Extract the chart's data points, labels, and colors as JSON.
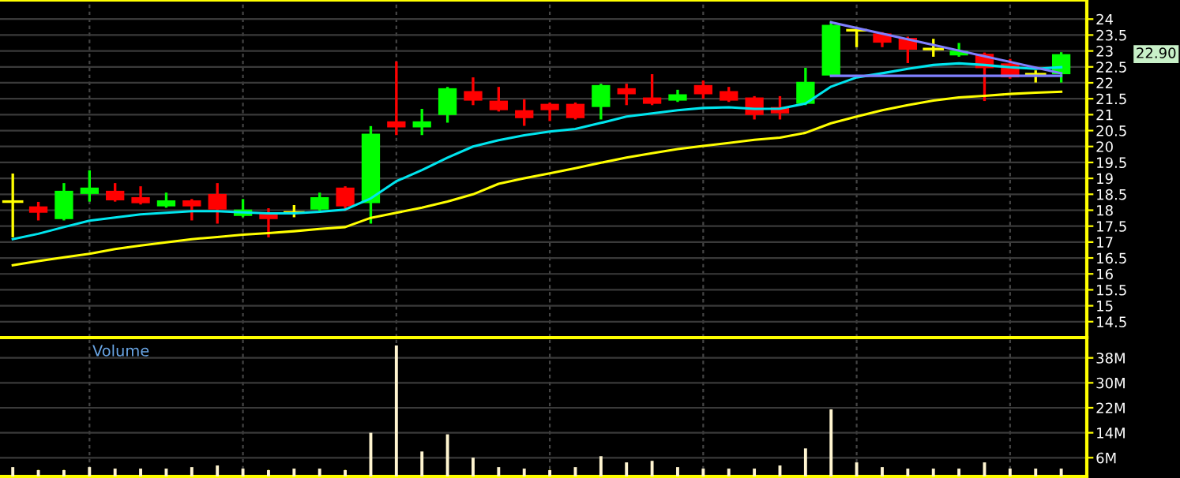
{
  "chart_data": [
    {
      "type": "candlestick",
      "categories": [
        null,
        null,
        null,
        null,
        null,
        null,
        null,
        null,
        null,
        null,
        null,
        null,
        null,
        null,
        null,
        null,
        null,
        null,
        null,
        null,
        null,
        null,
        null,
        null,
        null,
        null,
        null,
        null,
        null,
        null,
        null,
        null,
        null,
        null,
        null,
        null,
        null,
        null,
        null,
        null,
        null,
        null
      ],
      "ohlc": [
        [
          18.27,
          19.11,
          17.19,
          18.27
        ],
        [
          18.12,
          18.22,
          17.72,
          17.92
        ],
        [
          17.72,
          18.81,
          17.72,
          18.61
        ],
        [
          18.51,
          19.21,
          18.31,
          18.71
        ],
        [
          18.61,
          18.81,
          18.31,
          18.31
        ],
        [
          18.41,
          18.71,
          18.22,
          18.22
        ],
        [
          18.12,
          18.51,
          18.12,
          18.31
        ],
        [
          18.31,
          18.31,
          17.72,
          18.12
        ],
        [
          18.51,
          18.81,
          17.62,
          18.02
        ],
        [
          17.82,
          18.31,
          17.82,
          18.02
        ],
        [
          17.92,
          18.02,
          17.19,
          17.72
        ],
        [
          17.93,
          18.12,
          17.82,
          17.93
        ],
        [
          18.02,
          18.51,
          18.02,
          18.41
        ],
        [
          18.71,
          18.71,
          18.02,
          18.12
        ],
        [
          18.22,
          20.6,
          17.62,
          20.4
        ],
        [
          20.79,
          22.63,
          20.4,
          20.6
        ],
        [
          20.6,
          21.14,
          20.4,
          20.79
        ],
        [
          20.99,
          21.83,
          20.79,
          21.83
        ],
        [
          21.74,
          22.13,
          21.34,
          21.44
        ],
        [
          21.44,
          21.83,
          21.14,
          21.14
        ],
        [
          21.14,
          21.44,
          20.69,
          20.89
        ],
        [
          21.34,
          21.34,
          20.84,
          21.14
        ],
        [
          21.34,
          21.34,
          20.89,
          20.89
        ],
        [
          21.24,
          21.93,
          20.89,
          21.93
        ],
        [
          21.83,
          21.93,
          21.34,
          21.64
        ],
        [
          21.54,
          22.23,
          21.34,
          21.34
        ],
        [
          21.44,
          21.74,
          21.44,
          21.64
        ],
        [
          21.93,
          22.03,
          21.54,
          21.64
        ],
        [
          21.74,
          21.83,
          21.44,
          21.44
        ],
        [
          21.54,
          21.54,
          20.89,
          20.99
        ],
        [
          21.24,
          21.54,
          20.89,
          21.04
        ],
        [
          21.34,
          22.43,
          21.34,
          22.03
        ],
        [
          22.23,
          23.9,
          22.23,
          23.82
        ],
        [
          23.65,
          23.7,
          23.16,
          23.65
        ],
        [
          23.55,
          23.55,
          23.16,
          23.26
        ],
        [
          23.41,
          23.41,
          22.66,
          23.04
        ],
        [
          23.06,
          23.34,
          22.86,
          23.06
        ],
        [
          22.86,
          23.21,
          22.86,
          23.01
        ],
        [
          22.91,
          22.91,
          21.47,
          22.46
        ],
        [
          22.61,
          22.71,
          22.17,
          22.17
        ],
        [
          22.27,
          22.35,
          22.05,
          22.27
        ],
        [
          22.27,
          22.92,
          22.05,
          22.9
        ]
      ],
      "colors": [
        "#ffff00",
        "#ff0000",
        "#00ff00",
        "#00ff00",
        "#ff0000",
        "#ff0000",
        "#00ff00",
        "#ff0000",
        "#ff0000",
        "#00ff00",
        "#ff0000",
        "#ffff00",
        "#00ff00",
        "#ff0000",
        "#00ff00",
        "#ff0000",
        "#00ff00",
        "#00ff00",
        "#ff0000",
        "#ff0000",
        "#ff0000",
        "#ff0000",
        "#ff0000",
        "#00ff00",
        "#ff0000",
        "#ff0000",
        "#00ff00",
        "#ff0000",
        "#ff0000",
        "#ff0000",
        "#ff0000",
        "#00ff00",
        "#00ff00",
        "#ffff00",
        "#ff0000",
        "#ff0000",
        "#ffff00",
        "#00ff00",
        "#ff0000",
        "#ff0000",
        "#ffff00",
        "#00ff00"
      ],
      "series": [
        {
          "type": "line",
          "color": "#00e5ee",
          "values": [
            17.09,
            17.26,
            17.47,
            17.67,
            17.77,
            17.87,
            17.92,
            17.97,
            17.97,
            17.93,
            17.9,
            17.9,
            17.95,
            18.02,
            18.37,
            18.91,
            19.26,
            19.65,
            20.0,
            20.2,
            20.35,
            20.47,
            20.55,
            20.74,
            20.94,
            21.04,
            21.14,
            21.21,
            21.23,
            21.18,
            21.19,
            21.35,
            21.88,
            22.17,
            22.3,
            22.44,
            22.56,
            22.61,
            22.56,
            22.49,
            22.44,
            22.49
          ]
        },
        {
          "type": "line",
          "color": "#ffff00",
          "values": [
            16.27,
            16.4,
            16.52,
            16.63,
            16.78,
            16.89,
            16.99,
            17.09,
            17.16,
            17.23,
            17.28,
            17.34,
            17.41,
            17.47,
            17.76,
            17.92,
            18.08,
            18.27,
            18.5,
            18.83,
            19.0,
            19.16,
            19.32,
            19.49,
            19.65,
            19.79,
            19.92,
            20.02,
            20.11,
            20.21,
            20.28,
            20.43,
            20.73,
            20.94,
            21.14,
            21.3,
            21.44,
            21.54,
            21.59,
            21.65,
            21.69,
            21.72
          ]
        },
        {
          "type": "line",
          "color": "#8080ff",
          "values": [
            null,
            null,
            null,
            null,
            null,
            null,
            null,
            null,
            null,
            null,
            null,
            null,
            null,
            null,
            null,
            null,
            null,
            null,
            null,
            null,
            null,
            null,
            null,
            null,
            null,
            null,
            null,
            null,
            null,
            null,
            null,
            null,
            23.9,
            null,
            null,
            null,
            null,
            null,
            null,
            null,
            null,
            22.3
          ]
        },
        {
          "type": "line",
          "color": "#8080ff",
          "values": [
            null,
            null,
            null,
            null,
            null,
            null,
            null,
            null,
            null,
            null,
            null,
            null,
            null,
            null,
            null,
            null,
            null,
            null,
            null,
            null,
            null,
            null,
            null,
            null,
            null,
            null,
            null,
            null,
            null,
            null,
            null,
            null,
            22.22,
            null,
            null,
            null,
            null,
            null,
            null,
            null,
            null,
            22.22
          ]
        }
      ],
      "ylim": [
        14.0,
        24.6
      ],
      "yticks": [
        14.5,
        15,
        15.5,
        16,
        16.5,
        17,
        17.5,
        18,
        18.5,
        19,
        19.5,
        20,
        20.5,
        21,
        21.5,
        22,
        22.5,
        23,
        23.5,
        24
      ],
      "annotations": [
        "22.90"
      ],
      "grid": true,
      "tick_labels": "y"
    },
    {
      "type": "bar",
      "categories": [
        null,
        null,
        null,
        null,
        null,
        null,
        null,
        null,
        null,
        null,
        null,
        null,
        null,
        null,
        null,
        null,
        null,
        null,
        null,
        null,
        null,
        null,
        null,
        null,
        null,
        null,
        null,
        null,
        null,
        null,
        null,
        null,
        null,
        null,
        null,
        null,
        null,
        null,
        null,
        null,
        null,
        null
      ],
      "values": [
        3,
        2,
        2,
        3,
        2.5,
        2.5,
        2.5,
        3,
        3.5,
        2.5,
        2,
        2.5,
        2.5,
        2,
        14,
        42,
        8,
        13.5,
        6,
        3,
        2.5,
        2,
        3,
        6.5,
        4.5,
        5,
        3,
        2.5,
        2.5,
        2.5,
        3.5,
        9,
        21.5,
        4.5,
        3,
        2.5,
        2.5,
        2.5,
        4.5,
        2.5,
        2.5,
        2.5
      ],
      "color": "#fff5d0",
      "ylim": [
        0,
        44.5
      ],
      "yticks": [
        {
          "value": 6,
          "label": "6M"
        },
        {
          "value": 14,
          "label": "14M"
        },
        {
          "value": 22,
          "label": "22M"
        },
        {
          "value": 30,
          "label": "30M"
        },
        {
          "value": 38,
          "label": "38M"
        }
      ],
      "annotations": [
        "Volume"
      ],
      "grid": true,
      "tick_labels": "y"
    }
  ]
}
